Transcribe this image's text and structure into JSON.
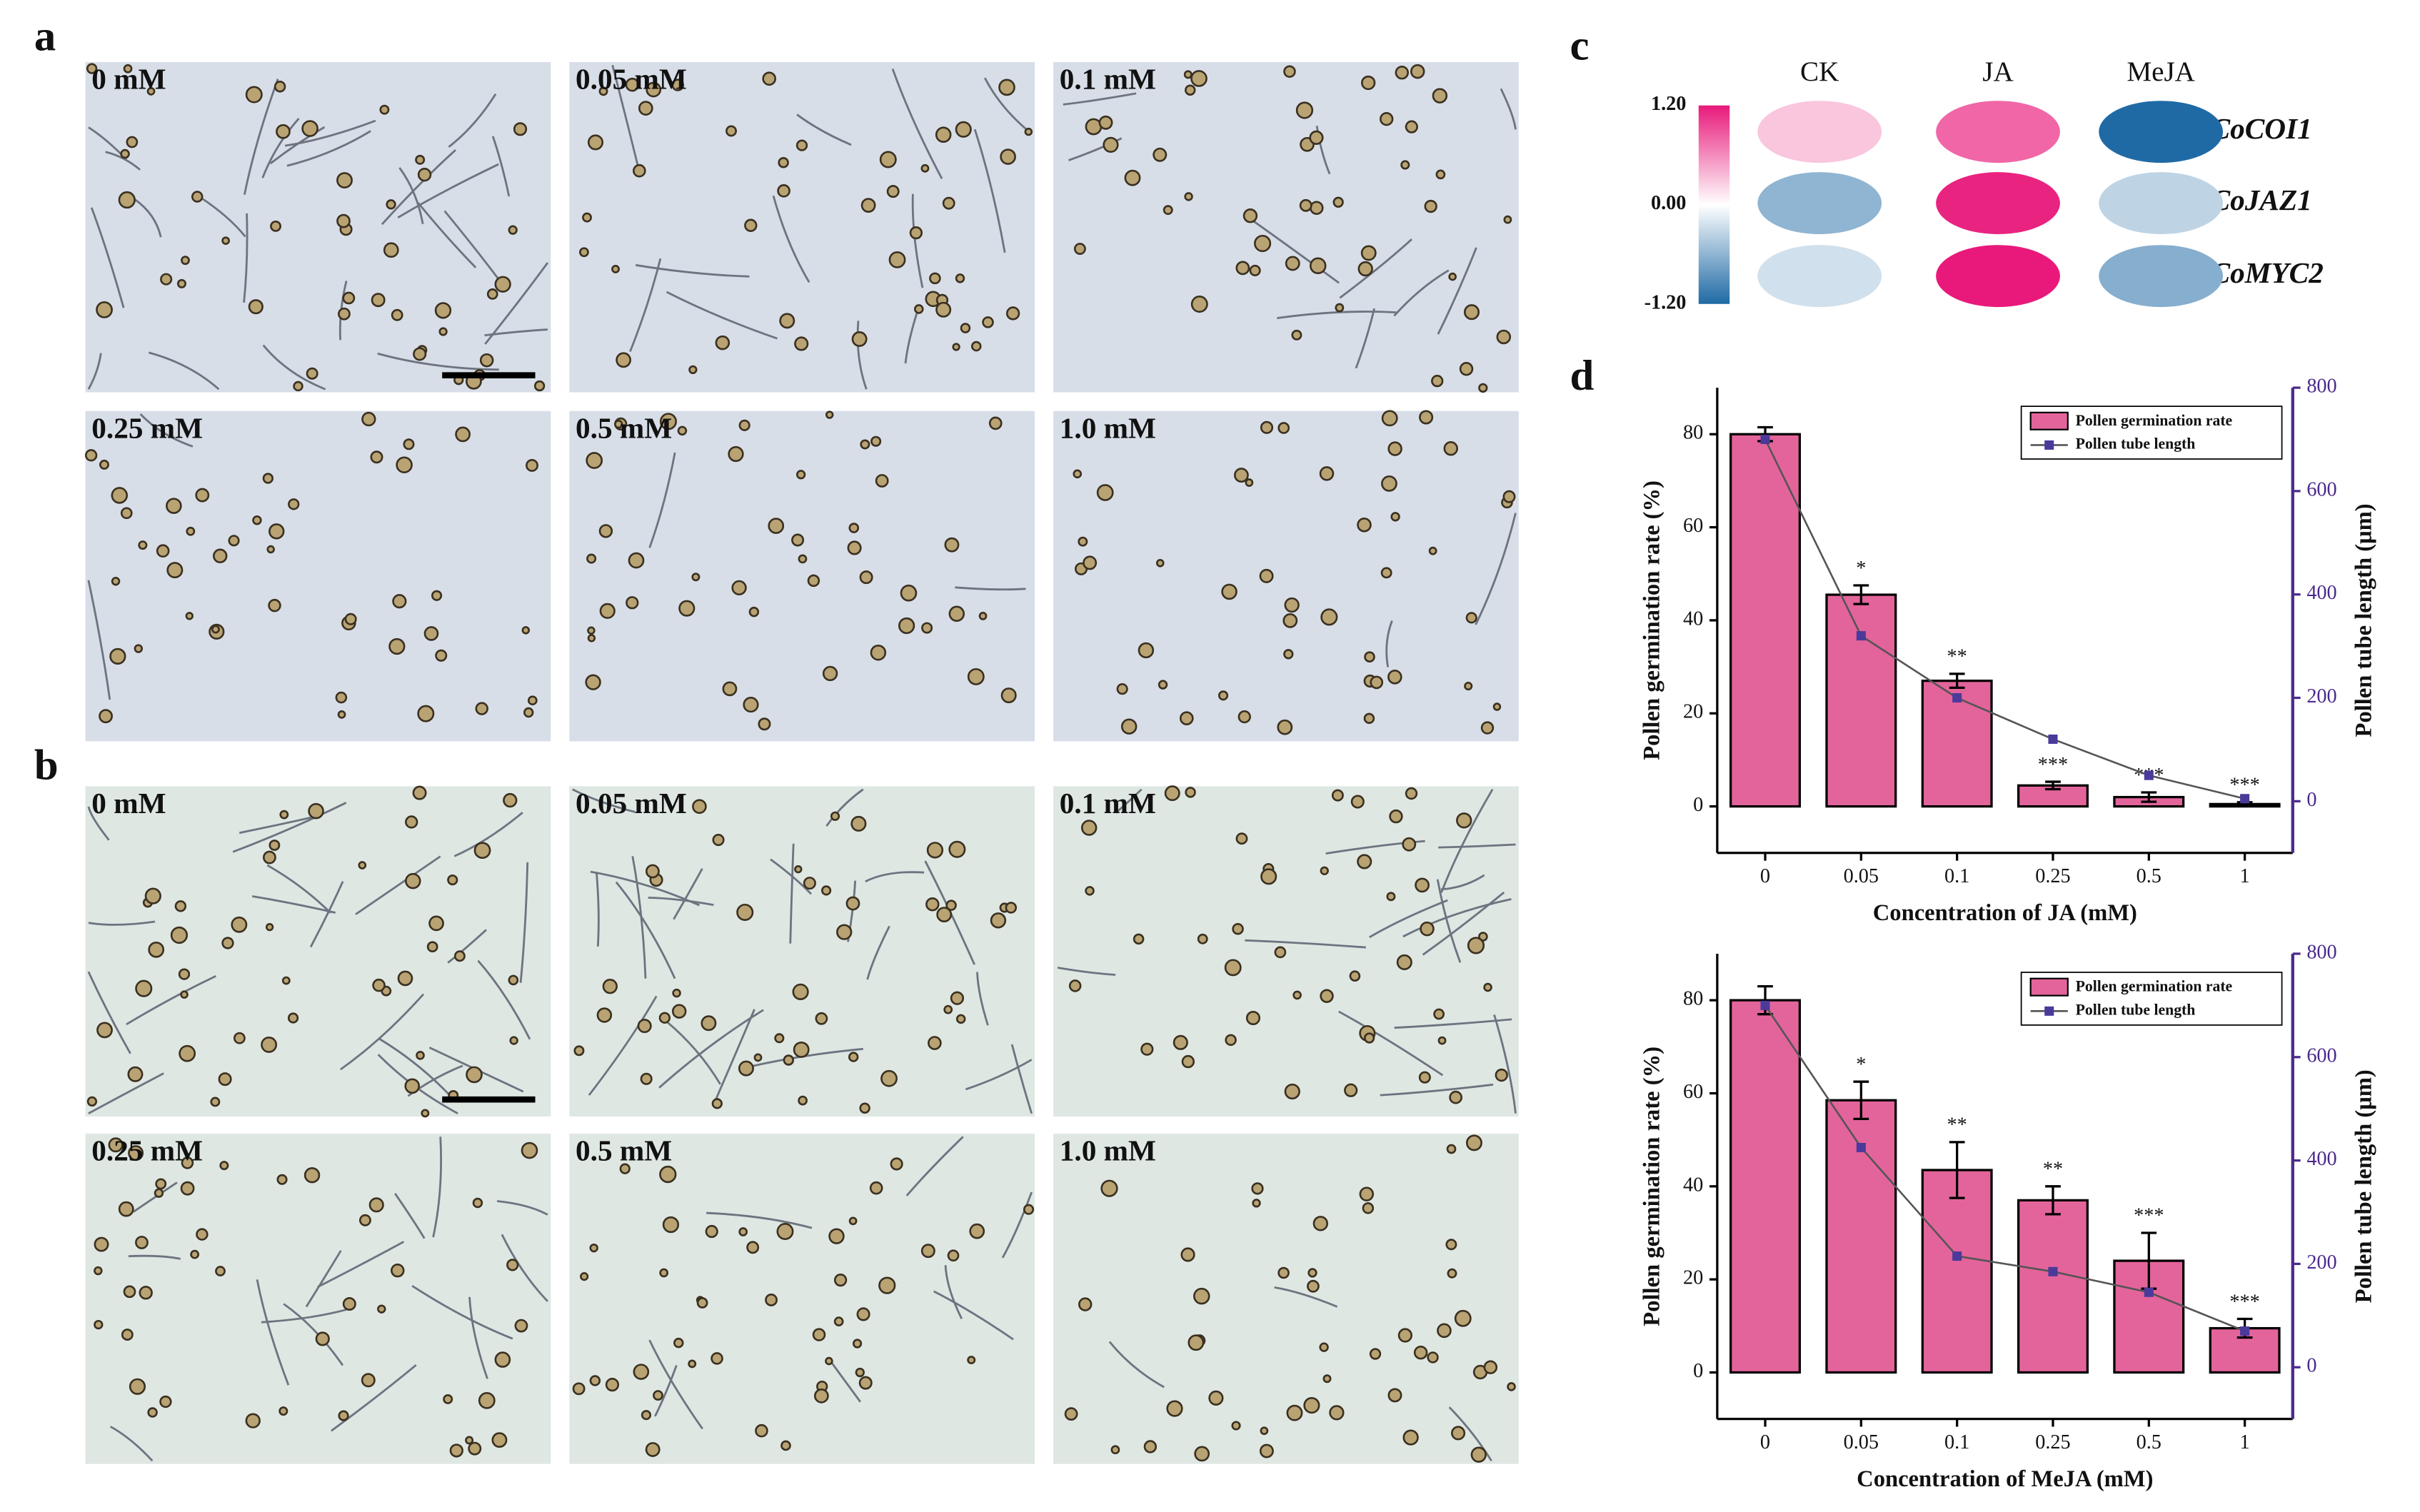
{
  "panel_labels": [
    "a",
    "b",
    "c",
    "d"
  ],
  "micrographs": {
    "a": [
      "0 mM",
      "0.05 mM",
      "0.1 mM",
      "0.25 mM",
      "0.5 mM",
      "1.0 mM"
    ],
    "b": [
      "0 mM",
      "0.05 mM",
      "0.1 mM",
      "0.25 mM",
      "0.5 mM",
      "1.0 mM"
    ]
  },
  "chart_data": [
    {
      "type": "heatmap",
      "columns": [
        "CK",
        "JA",
        "MeJA"
      ],
      "rows": [
        "CoCOI1",
        "CoJAZ1",
        "CoMYC2"
      ],
      "values": [
        [
          0.3,
          0.8,
          -1.2
        ],
        [
          -0.6,
          1.15,
          -0.35
        ],
        [
          -0.25,
          1.2,
          -0.65
        ]
      ],
      "zlim": [
        -1.2,
        1.2
      ],
      "zticks": [
        {
          "value": 1.2,
          "label": "1.20"
        },
        {
          "value": 0,
          "label": "0.00"
        },
        {
          "value": -1.2,
          "label": "-1.20"
        }
      ],
      "colors": [
        "#1f6aa5",
        "#ffffff",
        "#e8197a"
      ]
    },
    {
      "type": "combo",
      "categories": [
        "0",
        "0.05",
        "0.1",
        "0.25",
        "0.5",
        "1"
      ],
      "x_label": "Concentration of JA (mM)",
      "y_label": "Pollen germination rate (%)",
      "y2_label": "Pollen tube length (μm)",
      "ylim": [
        -10,
        90
      ],
      "yticks": [
        0,
        20,
        40,
        60,
        80
      ],
      "y2lim": [
        -100,
        800
      ],
      "y2ticks": [
        0,
        200,
        400,
        600,
        800
      ],
      "y2_color": "#4b2a8c",
      "series": [
        {
          "name": "Pollen germination rate",
          "type": "bar",
          "color": "#e3649b",
          "values": [
            80,
            45.5,
            27,
            4.5,
            2,
            0.5
          ],
          "errors": [
            1.5,
            2,
            1.5,
            0.8,
            1,
            0.4
          ],
          "annotations": [
            null,
            "*",
            "**",
            "***",
            "***",
            "***"
          ]
        },
        {
          "name": "Pollen tube length",
          "type": "line",
          "axis": "y2",
          "color": "#4b3a9a",
          "values": [
            700,
            320,
            200,
            120,
            50,
            5
          ]
        }
      ]
    },
    {
      "type": "combo",
      "categories": [
        "0",
        "0.05",
        "0.1",
        "0.25",
        "0.5",
        "1"
      ],
      "x_label": "Concentration of MeJA (mM)",
      "y_label": "Pollen germination rate (%)",
      "y2_label": "Pollen tube length (μm)",
      "ylim": [
        -10,
        90
      ],
      "yticks": [
        0,
        20,
        40,
        60,
        80
      ],
      "y2lim": [
        -100,
        800
      ],
      "y2ticks": [
        0,
        200,
        400,
        600,
        800
      ],
      "y2_color": "#4b2a8c",
      "series": [
        {
          "name": "Pollen germination rate",
          "type": "bar",
          "color": "#e3649b",
          "values": [
            80,
            58.5,
            43.5,
            37,
            24,
            9.5
          ],
          "errors": [
            3,
            4,
            6,
            3,
            6,
            2
          ],
          "annotations": [
            null,
            "*",
            "**",
            "**",
            "***",
            "***"
          ]
        },
        {
          "name": "Pollen tube length",
          "type": "line",
          "axis": "y2",
          "color": "#4b3a9a",
          "values": [
            700,
            425,
            215,
            185,
            145,
            70
          ]
        }
      ]
    }
  ]
}
